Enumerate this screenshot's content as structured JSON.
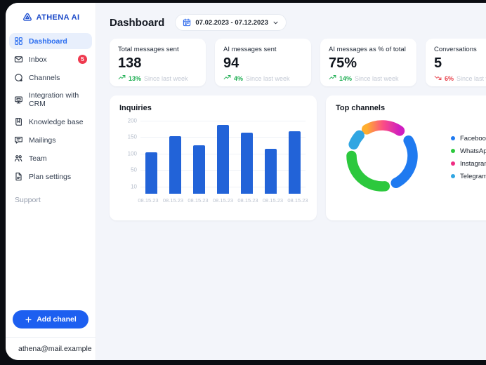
{
  "sidebar": {
    "logo_text": "ATHENA AI",
    "items": [
      {
        "label": "Dashboard",
        "icon": "grid",
        "active": true
      },
      {
        "label": "Inbox",
        "icon": "mail",
        "badge": "5"
      },
      {
        "label": "Channels",
        "icon": "chat-plus"
      },
      {
        "label": "Integration with CRM",
        "icon": "monitor"
      },
      {
        "label": "Knowledge base",
        "icon": "book"
      },
      {
        "label": "Mailings",
        "icon": "message-lines"
      },
      {
        "label": "Team",
        "icon": "team"
      },
      {
        "label": "Plan settings",
        "icon": "file"
      }
    ],
    "support_label": "Support",
    "add_channel_button": "Add chanel",
    "account_email": "athena@mail.example"
  },
  "header": {
    "title": "Dashboard",
    "date_range": "07.02.2023 - 07.12.2023"
  },
  "stats": {
    "cards": [
      {
        "label": "Total messages sent",
        "value": "138",
        "change": "13%",
        "trend": "up",
        "caption": "Since last week"
      },
      {
        "label": "AI messages sent",
        "value": "94",
        "change": "4%",
        "trend": "up",
        "caption": "Since last week"
      },
      {
        "label": "AI messages as % of total",
        "value": "75%",
        "change": "14%",
        "trend": "up",
        "caption": "Since last week"
      },
      {
        "label": "Conversations",
        "value": "5",
        "change": "6%",
        "trend": "down",
        "caption": "Since last week"
      }
    ]
  },
  "chart_data": [
    {
      "type": "bar",
      "title": "Inquiries",
      "categories": [
        "08.15.23",
        "08.15.23",
        "08.15.23",
        "08.15.23",
        "08.15.23",
        "08.15.23",
        "08.15.23"
      ],
      "values": [
        113,
        157,
        132,
        188,
        167,
        123,
        172
      ],
      "yticks": [
        200,
        150,
        100,
        50,
        10
      ],
      "ylim": [
        0,
        200
      ],
      "xlabel": "",
      "ylabel": "",
      "grid": true,
      "bar_color": "#2263d8",
      "legend_position": "none"
    },
    {
      "type": "pie",
      "title": "Top channels",
      "style": "donut",
      "legend_position": "right",
      "series": [
        {
          "name": "Facebook",
          "value": 32,
          "color": "#1f7af0",
          "start": 60,
          "end": 153
        },
        {
          "name": "WhatsApp",
          "value": 33,
          "color": "#2cc83d",
          "start": 175,
          "end": 270
        },
        {
          "name": "Instagram",
          "value": 26,
          "color": "#ef2c82",
          "gradient": [
            "#ffae2e",
            "#fb4e85",
            "#cf1ec0"
          ],
          "start": 330,
          "end": 395
        },
        {
          "name": "Telegram",
          "value": 9,
          "color": "#31a6e2",
          "start": 292,
          "end": 312
        }
      ]
    }
  ],
  "colors": {
    "accent_blue": "#1d5ff0",
    "active_item_bg": "#e8effc",
    "badge_red": "#ef3a4f",
    "trend_up_green": "#1fae53",
    "trend_down_red": "#e8404a",
    "main_bg": "#f3f5fa",
    "bar_blue": "#2263d8"
  }
}
